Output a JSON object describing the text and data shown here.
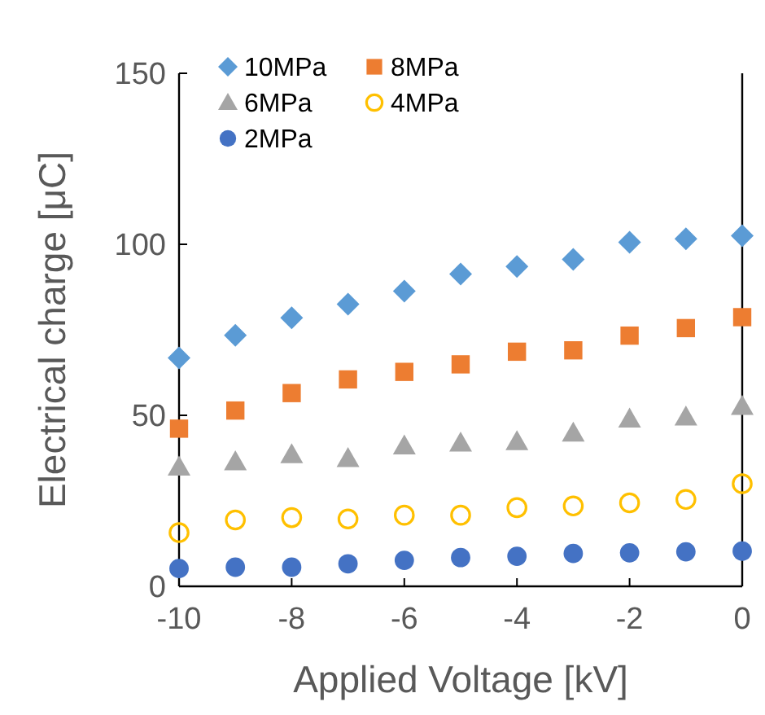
{
  "chart_data": {
    "type": "scatter",
    "xlabel": "Applied Voltage [kV]",
    "ylabel": "Electrical charge [μC]",
    "x": [
      -10,
      -9,
      -8,
      -7,
      -6,
      -5,
      -4,
      -3,
      -2,
      -1,
      0
    ],
    "xlim": [
      -10,
      0
    ],
    "xticks": [
      -10,
      -8,
      -6,
      -4,
      -2,
      0
    ],
    "ylim": [
      0,
      150
    ],
    "yticks": [
      0,
      50,
      100,
      150
    ],
    "legend": "top left",
    "grid": false,
    "series": [
      {
        "name": "10MPa",
        "color": "#5b9bd5",
        "marker": "diamond",
        "values": [
          66.8,
          73.4,
          78.5,
          82.5,
          86.3,
          91.3,
          93.5,
          95.6,
          100.6,
          101.6,
          102.5
        ]
      },
      {
        "name": "8MPa",
        "color": "#ed7d31",
        "marker": "square",
        "values": [
          46.1,
          51.4,
          56.5,
          60.5,
          62.7,
          64.9,
          68.6,
          69.0,
          73.3,
          75.5,
          78.7
        ]
      },
      {
        "name": "6MPa",
        "color": "#a5a5a5",
        "marker": "triangle",
        "values": [
          34.9,
          36.4,
          38.5,
          37.4,
          41.1,
          41.9,
          42.3,
          44.8,
          48.9,
          49.5,
          52.6
        ]
      },
      {
        "name": "4MPa",
        "color": "#ffc000",
        "marker": "circle-open",
        "values": [
          15.7,
          19.4,
          20.1,
          19.7,
          20.8,
          20.8,
          23.0,
          23.5,
          24.4,
          25.4,
          30.0
        ]
      },
      {
        "name": "2MPa",
        "color": "#4472c4",
        "marker": "circle",
        "values": [
          5.2,
          5.6,
          5.6,
          6.6,
          7.6,
          8.4,
          8.8,
          9.6,
          9.8,
          10.1,
          10.3
        ]
      }
    ]
  }
}
